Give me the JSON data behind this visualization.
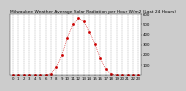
{
  "title": "Milwaukee Weather Average Solar Radiation per Hour W/m2 (Last 24 Hours)",
  "hours": [
    0,
    1,
    2,
    3,
    4,
    5,
    6,
    7,
    8,
    9,
    10,
    11,
    12,
    13,
    14,
    15,
    16,
    17,
    18,
    19,
    20,
    21,
    22,
    23
  ],
  "values": [
    0,
    0,
    0,
    0,
    0,
    0,
    0,
    15,
    80,
    200,
    370,
    500,
    560,
    530,
    430,
    310,
    170,
    60,
    10,
    0,
    0,
    0,
    0,
    0
  ],
  "line_color": "#cc0000",
  "bg_color": "#cccccc",
  "plot_bg": "#ffffff",
  "grid_color": "#888888",
  "ylim": [
    0,
    600
  ],
  "yticks": [
    100,
    200,
    300,
    400,
    500,
    600
  ],
  "ytick_labels": [
    "100",
    "200",
    "300",
    "400",
    "500",
    "600"
  ],
  "xtick_labels": [
    "0",
    "1",
    "2",
    "3",
    "4",
    "5",
    "6",
    "7",
    "8",
    "9",
    "10",
    "11",
    "12",
    "13",
    "14",
    "15",
    "16",
    "17",
    "18",
    "19",
    "20",
    "21",
    "22",
    "23"
  ],
  "title_fontsize": 3.2,
  "tick_fontsize": 2.8,
  "marker": "s",
  "markersize": 0.9,
  "linewidth": 0.5,
  "linestyle": ":"
}
